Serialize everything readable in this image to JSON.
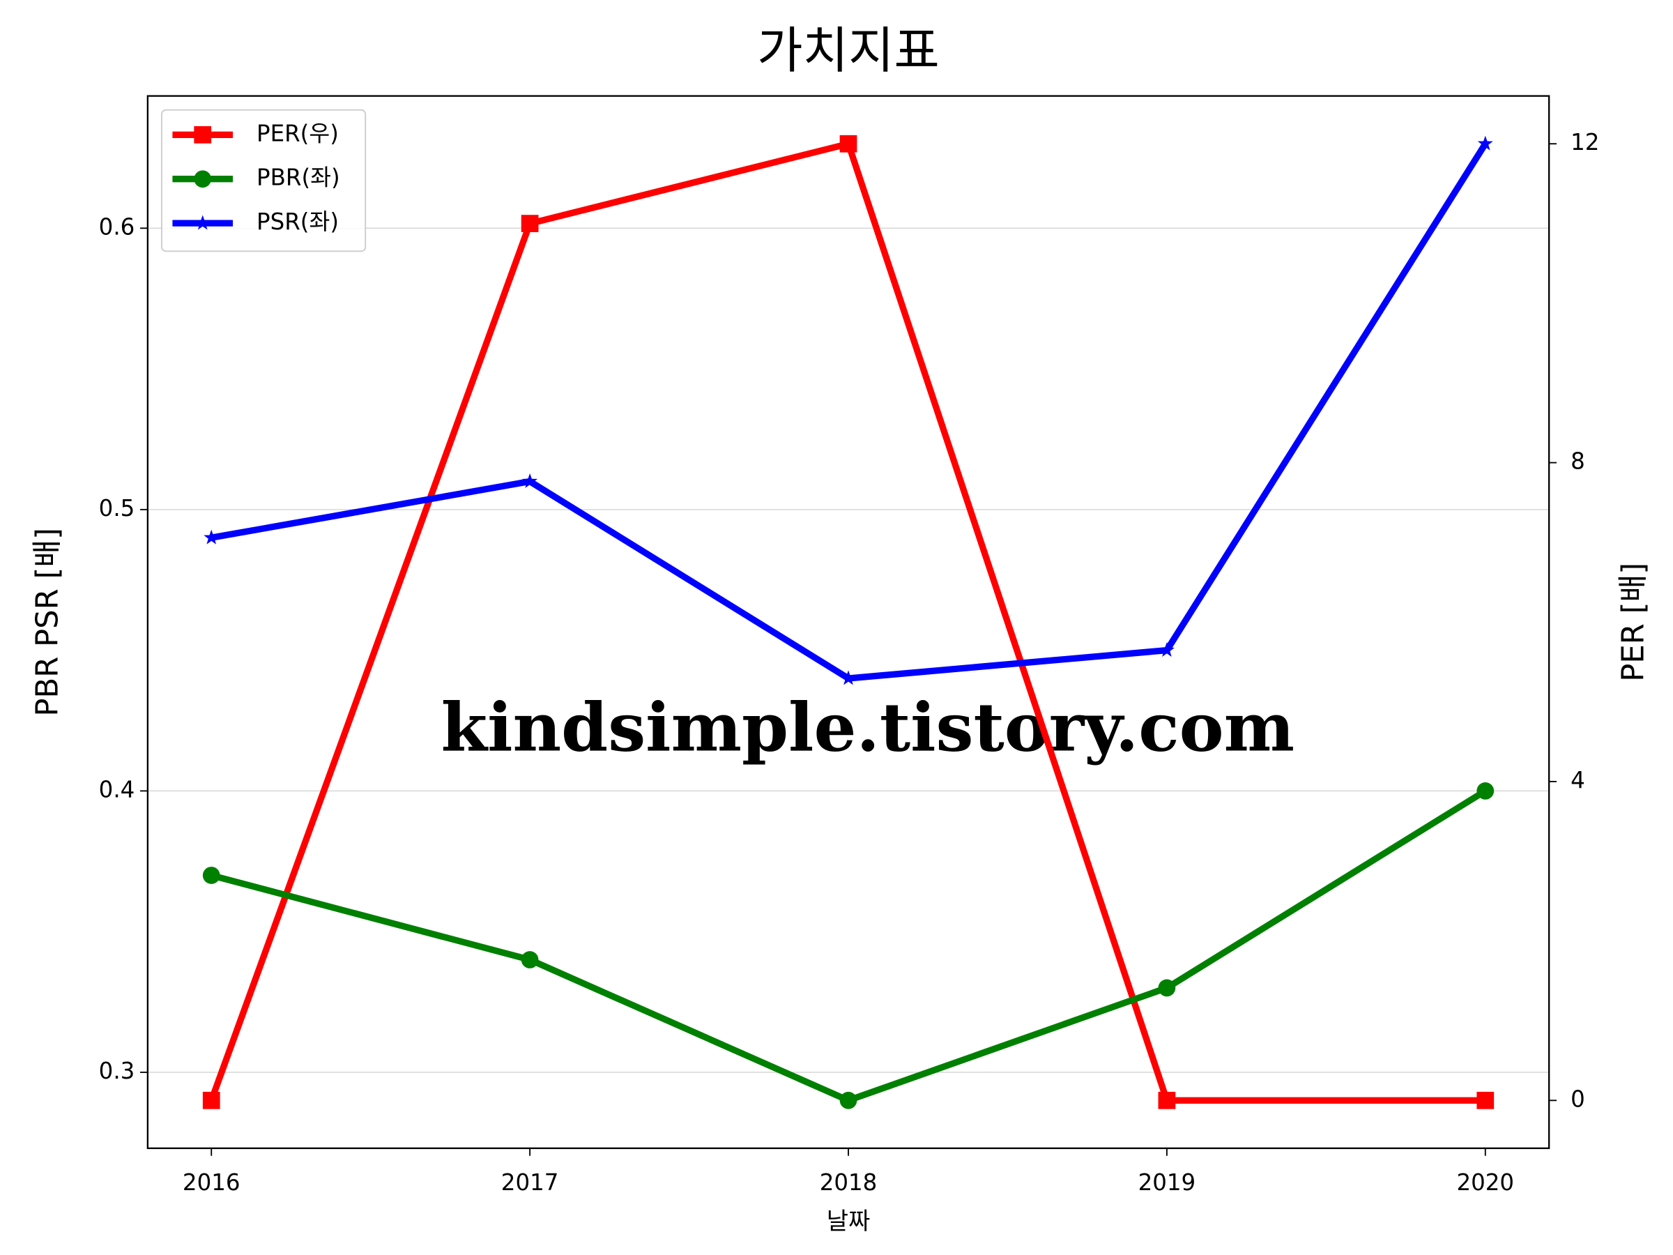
{
  "chart_data": {
    "type": "line",
    "title": "가치지표",
    "x_label": "날짜",
    "y_label": "PBR PSR [배]",
    "y2_label": "PER [배]",
    "y_label_color": "#008000",
    "y2_label_color": "#ff0000",
    "x": [
      2016,
      2017,
      2018,
      2019,
      2020
    ],
    "xlim": [
      2015.8,
      2020.2
    ],
    "xticks": [
      2016,
      2017,
      2018,
      2019,
      2020
    ],
    "ylim": [
      0.273,
      0.647
    ],
    "yticks": [
      0.3,
      0.4,
      0.5,
      0.6
    ],
    "y2lim": [
      -0.6,
      12.6
    ],
    "y2ticks": [
      0,
      4,
      8,
      12
    ],
    "grid": true,
    "legend": "upper left",
    "annotation": "kindsimple.tistory.com",
    "annotation_color": "#e0a0e8",
    "series": [
      {
        "name": "PER(우)",
        "color": "#ff0000",
        "marker": "square",
        "axis": "y2",
        "values": [
          0,
          11,
          12,
          0,
          0
        ]
      },
      {
        "name": "PBR(좌)",
        "color": "#008000",
        "marker": "circle",
        "values": [
          0.37,
          0.34,
          0.29,
          0.33,
          0.4
        ]
      },
      {
        "name": "PSR(좌)",
        "color": "#0000ff",
        "marker": "star",
        "values": [
          0.49,
          0.51,
          0.44,
          0.45,
          0.63
        ]
      }
    ]
  }
}
